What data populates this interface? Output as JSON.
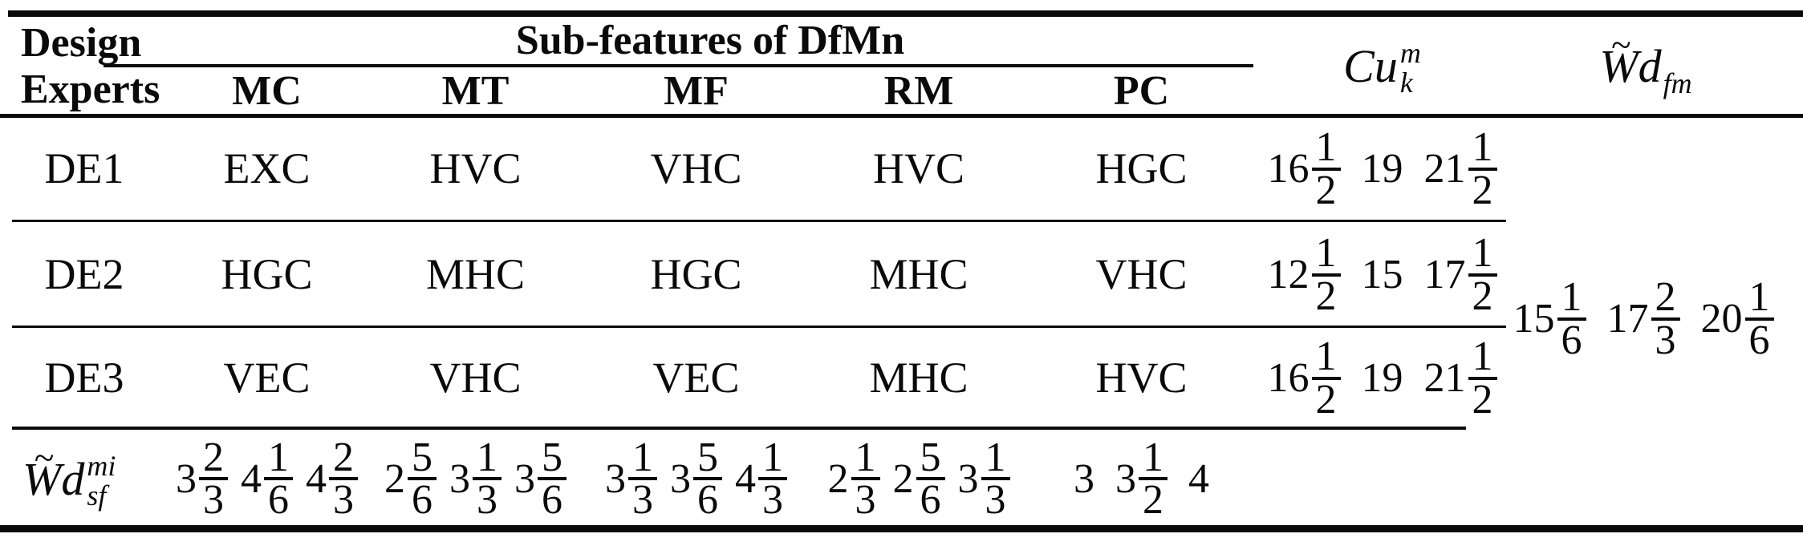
{
  "colors": {
    "ink": "#0a0a0a",
    "background": "#ffffff"
  },
  "header": {
    "experts_line1": "Design",
    "experts_line2": "Experts",
    "subfeatures_label": "Sub-features of DfMn",
    "columns": [
      "MC",
      "MT",
      "MF",
      "RM",
      "PC"
    ],
    "cu": {
      "base": "Cu",
      "sup": "m",
      "sub": "k"
    },
    "wd_fm": {
      "tilde": "~",
      "w": "W",
      "d": "d",
      "sub": "fm"
    }
  },
  "rows": [
    {
      "expert": "DE1",
      "values": [
        "EXC",
        "HVC",
        "VHC",
        "HVC",
        "HGC"
      ],
      "cu": [
        {
          "w": "16",
          "n": "1",
          "d": "2"
        },
        {
          "w": "19"
        },
        {
          "w": "21",
          "n": "1",
          "d": "2"
        }
      ]
    },
    {
      "expert": "DE2",
      "values": [
        "HGC",
        "MHC",
        "HGC",
        "MHC",
        "VHC"
      ],
      "cu": [
        {
          "w": "12",
          "n": "1",
          "d": "2"
        },
        {
          "w": "15"
        },
        {
          "w": "17",
          "n": "1",
          "d": "2"
        }
      ]
    },
    {
      "expert": "DE3",
      "values": [
        "VEC",
        "VHC",
        "VEC",
        "MHC",
        "HVC"
      ],
      "cu": [
        {
          "w": "16",
          "n": "1",
          "d": "2"
        },
        {
          "w": "19"
        },
        {
          "w": "21",
          "n": "1",
          "d": "2"
        }
      ]
    }
  ],
  "wd_fm": {
    "values": [
      {
        "w": "15",
        "n": "1",
        "d": "6"
      },
      {
        "w": "17",
        "n": "2",
        "d": "3"
      },
      {
        "w": "20",
        "n": "1",
        "d": "6"
      }
    ]
  },
  "wd_sf": {
    "label": {
      "tilde": "~",
      "w": "W",
      "d": "d",
      "sup": "mi",
      "sub": "sf"
    },
    "cols": {
      "MC": [
        {
          "w": "3",
          "n": "2",
          "d": "3"
        },
        {
          "w": "4",
          "n": "1",
          "d": "6"
        },
        {
          "w": "4",
          "n": "2",
          "d": "3"
        }
      ],
      "MT": [
        {
          "w": "2",
          "n": "5",
          "d": "6"
        },
        {
          "w": "3",
          "n": "1",
          "d": "3"
        },
        {
          "w": "3",
          "n": "5",
          "d": "6"
        }
      ],
      "MF": [
        {
          "w": "3",
          "n": "1",
          "d": "3"
        },
        {
          "w": "3",
          "n": "5",
          "d": "6"
        },
        {
          "w": "4",
          "n": "1",
          "d": "3"
        }
      ],
      "RM": [
        {
          "w": "2",
          "n": "1",
          "d": "3"
        },
        {
          "w": "2",
          "n": "5",
          "d": "6"
        },
        {
          "w": "3",
          "n": "1",
          "d": "3"
        }
      ],
      "PC": [
        {
          "w": "3"
        },
        {
          "w": "3",
          "n": "1",
          "d": "2"
        },
        {
          "w": "4"
        }
      ]
    }
  }
}
